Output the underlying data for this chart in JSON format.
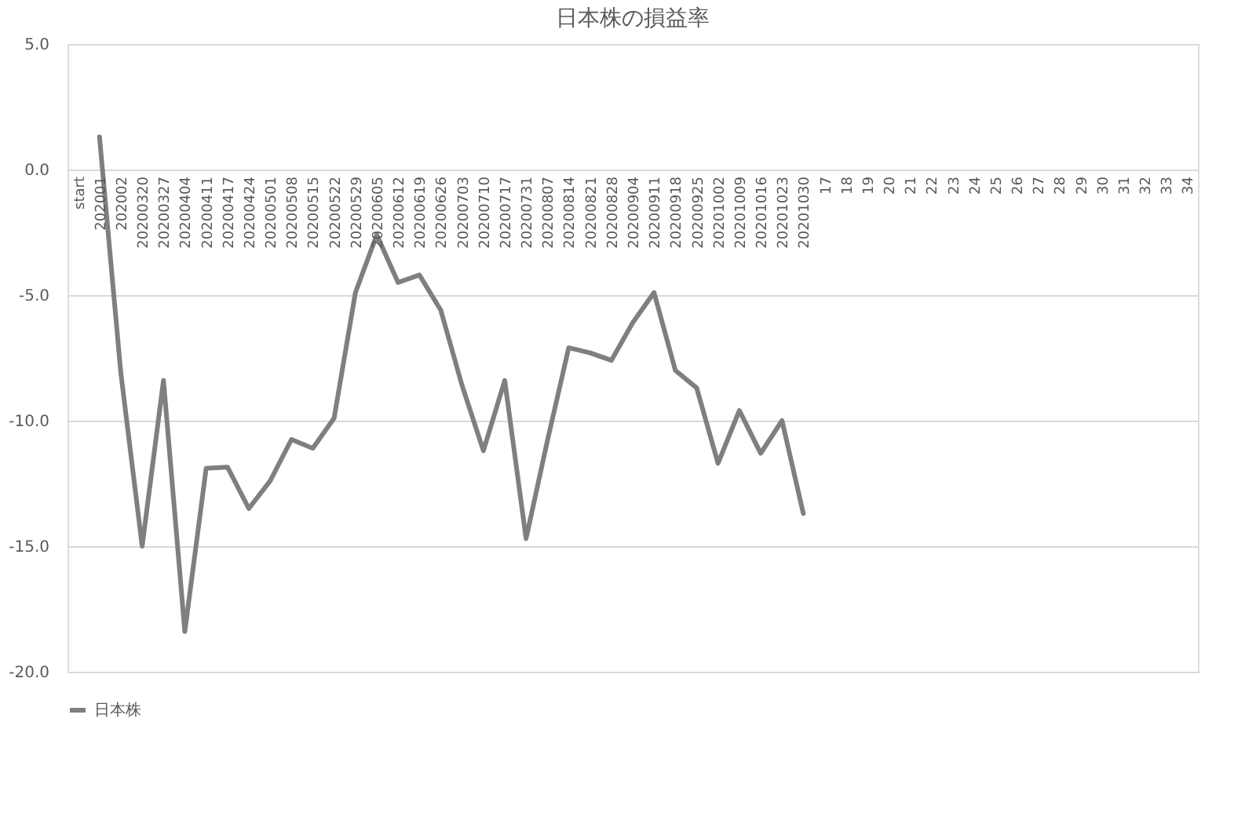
{
  "chart_data": {
    "type": "line",
    "title": "日本株の損益率",
    "categories": [
      "start",
      "202001",
      "202002",
      "20200320",
      "20200327",
      "20200404",
      "20200411",
      "20200417",
      "20200424",
      "20200501",
      "20200508",
      "20200515",
      "20200522",
      "20200529",
      "20200605",
      "20200612",
      "20200619",
      "20200626",
      "20200703",
      "20200710",
      "20200717",
      "20200731",
      "20200807",
      "20200814",
      "20200821",
      "20200828",
      "20200904",
      "20200911",
      "20200918",
      "20200925",
      "20201002",
      "20201009",
      "20201016",
      "20201023",
      "20201030",
      "17",
      "18",
      "19",
      "20",
      "21",
      "22",
      "23",
      "24",
      "25",
      "26",
      "27",
      "28",
      "29",
      "30",
      "31",
      "32",
      "33",
      "34"
    ],
    "series": [
      {
        "name": "日本株",
        "color": "#7f7f7f",
        "values": [
          null,
          1.3,
          -8.1,
          -15.0,
          -8.4,
          -18.4,
          -11.9,
          -11.85,
          -13.5,
          -12.4,
          -10.75,
          -11.1,
          -9.9,
          -4.9,
          -2.6,
          -4.5,
          -4.2,
          -5.6,
          -8.6,
          -11.2,
          -8.4,
          -14.7,
          -10.8,
          -7.1,
          -7.3,
          -7.6,
          -6.1,
          -4.9,
          -8.0,
          -8.7,
          -11.7,
          -9.6,
          -11.3,
          -10.0,
          -13.7,
          null,
          null,
          null,
          null,
          null,
          null,
          null,
          null,
          null,
          null,
          null,
          null,
          null,
          null,
          null,
          null,
          null,
          null
        ]
      }
    ],
    "ylim": [
      -20,
      5
    ],
    "yticks": [
      {
        "value": -20,
        "label": "-20.0"
      },
      {
        "value": -15,
        "label": "-15.0"
      },
      {
        "value": -10,
        "label": "-10.0"
      },
      {
        "value": -5,
        "label": "-5.0"
      },
      {
        "value": 0,
        "label": "0.0"
      },
      {
        "value": 5,
        "label": "5.0"
      }
    ],
    "grid": "y",
    "legend": "bottom",
    "marker": "none",
    "line_style": "solid"
  }
}
